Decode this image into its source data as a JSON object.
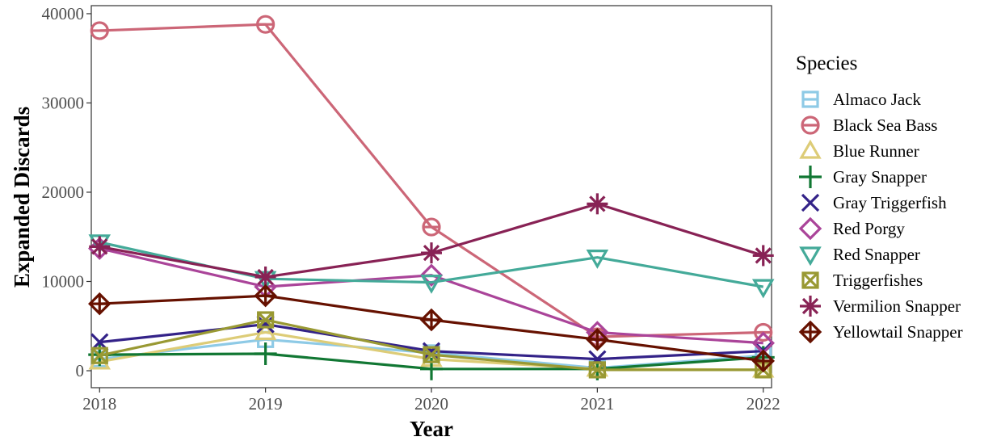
{
  "chart_data": {
    "type": "line",
    "title": "",
    "xlabel": "Year",
    "ylabel": "Expanded Discards",
    "x": [
      2018,
      2019,
      2020,
      2021,
      2022
    ],
    "x_tick_labels": [
      "2018",
      "2019",
      "2020",
      "2021",
      "2022"
    ],
    "y_ticks": [
      0,
      10000,
      20000,
      30000,
      40000
    ],
    "y_tick_labels": [
      "0",
      "10000",
      "20000",
      "30000",
      "40000"
    ],
    "xlim": [
      2017.95,
      2022.05
    ],
    "ylim": [
      -1900,
      40900
    ],
    "grid": false,
    "legend": {
      "title": "Species",
      "position": "right"
    },
    "series": [
      {
        "name": "Almaco Jack",
        "color": "#8ecae6",
        "marker": "square-minus",
        "values": [
          1300,
          3500,
          2000,
          300,
          1700
        ]
      },
      {
        "name": "Black Sea Bass",
        "color": "#cc6677",
        "marker": "circle-minus",
        "values": [
          38100,
          38800,
          16100,
          3800,
          4300
        ]
      },
      {
        "name": "Blue Runner",
        "color": "#ddcc77",
        "marker": "triangle-up",
        "values": [
          1000,
          4300,
          1300,
          200,
          100
        ]
      },
      {
        "name": "Gray Snapper",
        "color": "#117733",
        "marker": "plus",
        "values": [
          1800,
          1900,
          200,
          200,
          1500
        ]
      },
      {
        "name": "Gray Triggerfish",
        "color": "#332288",
        "marker": "x",
        "values": [
          3200,
          5200,
          2200,
          1300,
          2200
        ]
      },
      {
        "name": "Red Porgy",
        "color": "#aa4499",
        "marker": "diamond",
        "values": [
          13700,
          9400,
          10700,
          4300,
          3100
        ]
      },
      {
        "name": "Red Snapper",
        "color": "#44aa99",
        "marker": "triangle-down",
        "values": [
          14400,
          10300,
          9900,
          12700,
          9400
        ]
      },
      {
        "name": "Triggerfishes",
        "color": "#999933",
        "marker": "square-x",
        "values": [
          1700,
          5700,
          1800,
          100,
          100
        ]
      },
      {
        "name": "Vermilion Snapper",
        "color": "#882255",
        "marker": "asterisk",
        "values": [
          13900,
          10500,
          13200,
          18700,
          12900
        ]
      },
      {
        "name": "Yellowtail Snapper",
        "color": "#661100",
        "marker": "diamond-plus",
        "values": [
          7500,
          8400,
          5700,
          3500,
          1100
        ]
      }
    ]
  }
}
